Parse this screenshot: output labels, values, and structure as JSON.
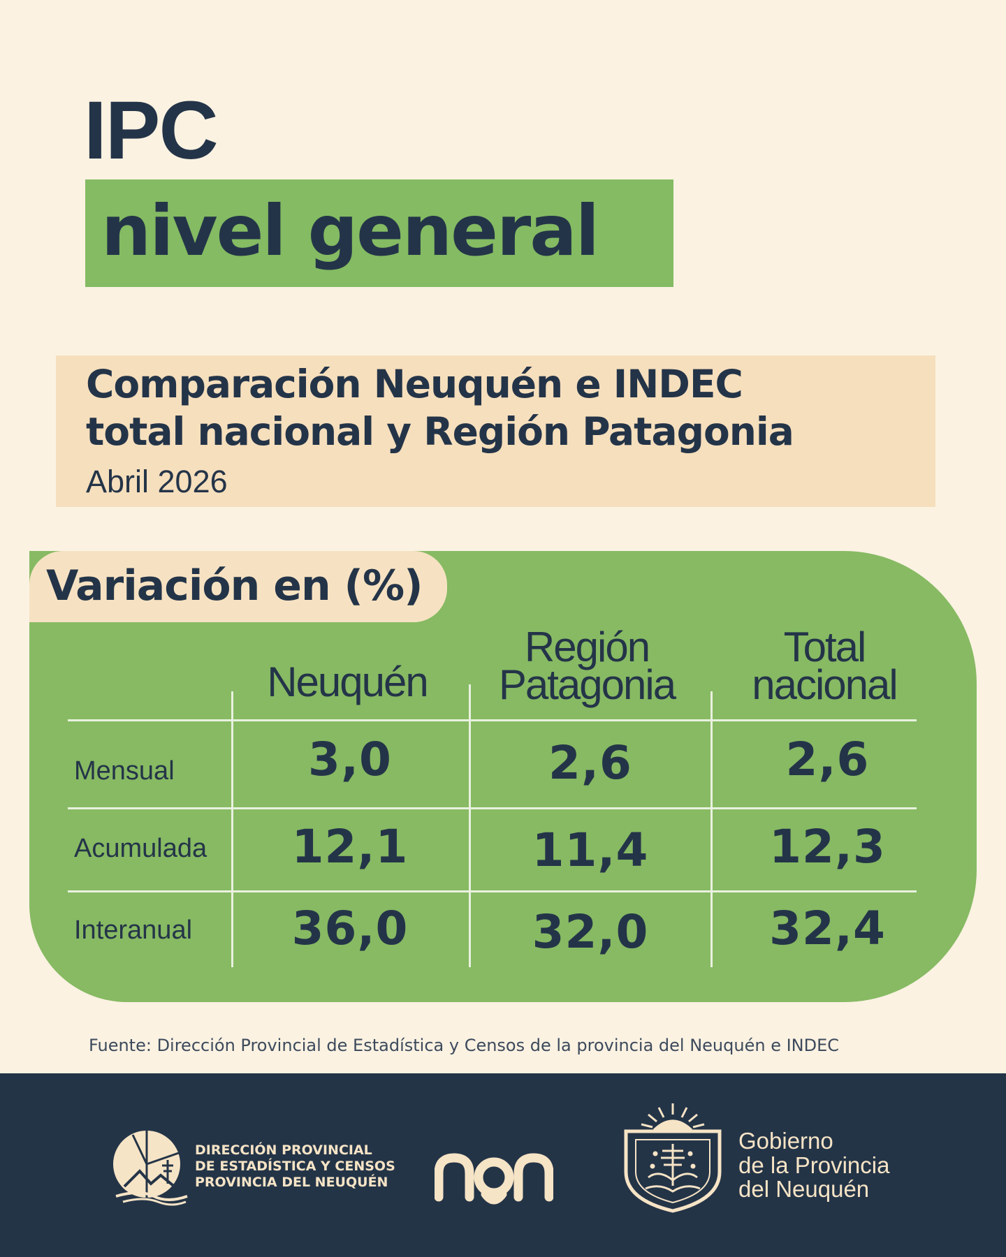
{
  "header": {
    "title": "IPC",
    "subtitle": "nivel general"
  },
  "comparison": {
    "line1": "Comparación Neuquén e INDEC",
    "line2": "total nacional y Región Patagonia",
    "period": "Abril 2026"
  },
  "table": {
    "section_label": "Variación en (%)",
    "columns": [
      {
        "line1": "Neuquén",
        "line2": ""
      },
      {
        "line1": "Región",
        "line2": "Patagonia"
      },
      {
        "line1": "Total",
        "line2": "nacional"
      }
    ],
    "rows": [
      {
        "label": "Mensual",
        "values": [
          "3,0",
          "2,6",
          "2,6"
        ]
      },
      {
        "label": "Acumulada",
        "values": [
          "12,1",
          "11,4",
          "12,3"
        ]
      },
      {
        "label": "Interanual",
        "values": [
          "36,0",
          "32,0",
          "32,4"
        ]
      }
    ]
  },
  "source": "Fuente: Dirección Provincial de Estadística y Censos de la provincia del Neuquén e INDEC",
  "footer": {
    "dpe_lines": [
      "DIRECCIÓN PROVINCIAL",
      "DE ESTADÍSTICA Y CENSOS",
      "PROVINCIA DEL NEUQUÉN"
    ],
    "nqn_logo": "nqn",
    "gov_lines": [
      "Gobierno",
      "de la Provincia",
      "del Neuquén"
    ]
  },
  "colors": {
    "background": "#fbf2e2",
    "green": "#84bb63",
    "beige": "#f6dfbd",
    "navy": "#243447",
    "cream_text": "#f6e4c6"
  }
}
